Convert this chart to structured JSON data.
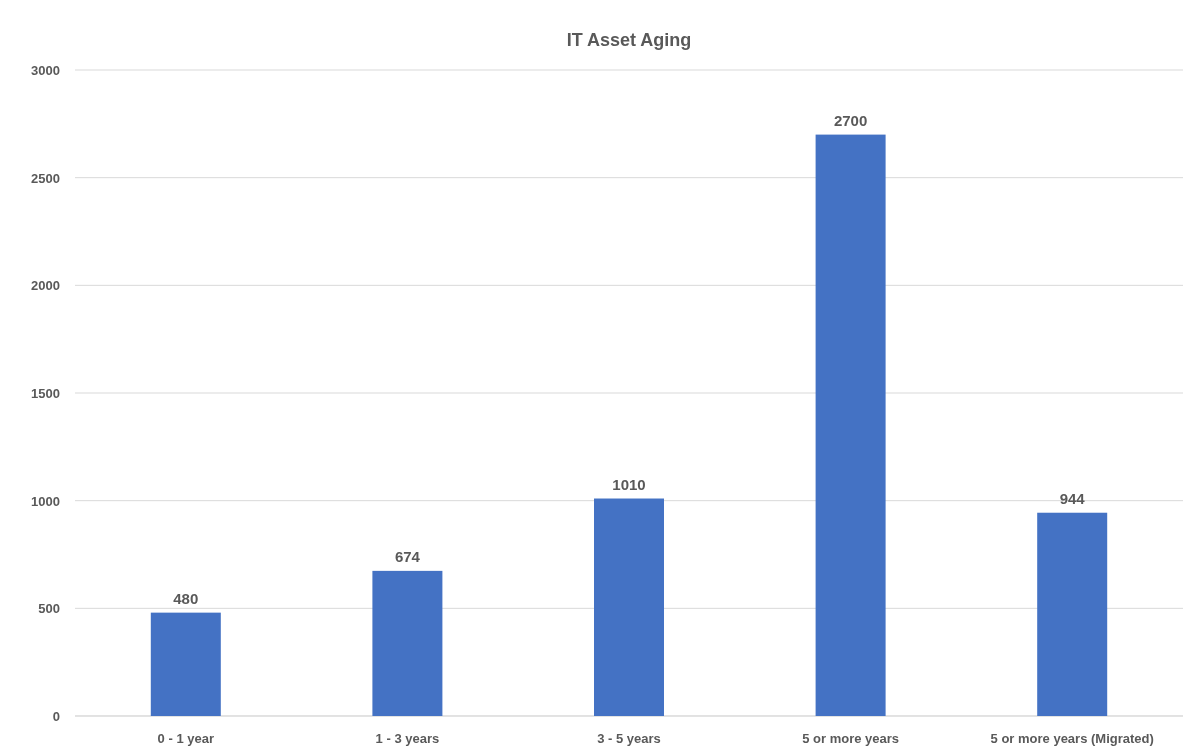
{
  "chart_data": {
    "type": "bar",
    "title": "IT Asset Aging",
    "categories": [
      "0 - 1 year",
      "1 - 3 years",
      "3 - 5 years",
      "5 or more years",
      "5 or more years (Migrated)"
    ],
    "values": [
      480,
      674,
      1010,
      2700,
      944
    ],
    "color": "#4472c4",
    "ylim": [
      0,
      3000
    ],
    "yticks": [
      0,
      500,
      1000,
      1500,
      2000,
      2500,
      3000
    ],
    "grid": "y",
    "data_labels": true
  }
}
